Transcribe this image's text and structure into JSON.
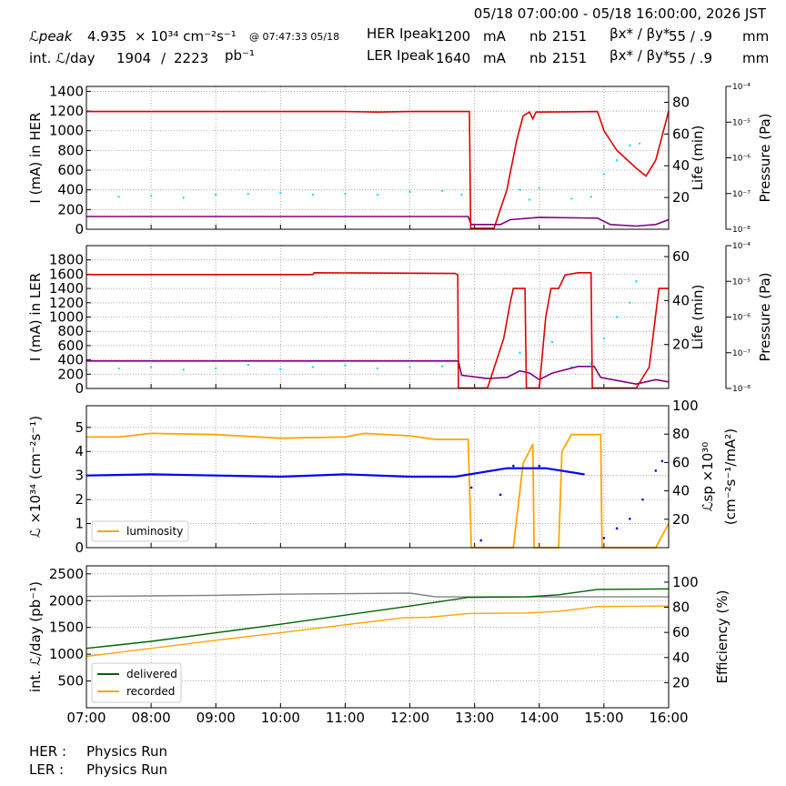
{
  "header": {
    "time_range": "05/18 07:00:00 - 05/18 16:00:00, 2026 JST",
    "lpeak_label": "ℒpeak",
    "lpeak_value": "4.935",
    "lpeak_unit": "× 10³⁴ cm⁻²s⁻¹",
    "lpeak_time": "@ 07:47:33 05/18",
    "intl_label": "int. ℒ/day",
    "intl_recorded": "1904",
    "intl_sep": "/",
    "intl_delivered": "2223",
    "intl_unit": "pb⁻¹",
    "her_label": "HER Ipeak",
    "her_value": "1200",
    "her_unit": "mA",
    "ler_label": "LER Ipeak",
    "ler_value": "1640",
    "ler_unit": "mA",
    "nb_label": "nb",
    "her_nb": "2151",
    "ler_nb": "2151",
    "beta_label": "βx* / βy*",
    "her_beta": "55   / .9",
    "ler_beta": "55   / .9",
    "beta_unit": "mm"
  },
  "footer": {
    "her_label": "HER :",
    "her_status": "Physics Run",
    "ler_label": "LER :",
    "ler_status": "Physics Run"
  },
  "colors": {
    "current": "#e00000",
    "life": "#800080",
    "pressure": "#00e5ff",
    "luminosity": "#ffa500",
    "specific": "#0000ff",
    "delivered": "#006400",
    "recorded": "#ffa500",
    "efficiency": "#808080",
    "grid": "#9a9a9a"
  },
  "chart_data": [
    {
      "type": "line",
      "id": "her",
      "ylabel": "I (mA) in HER",
      "y2label": "Life (min)",
      "y3label": "Pressure (Pa)",
      "x_ticks": [
        "07:00",
        "08:00",
        "09:00",
        "10:00",
        "11:00",
        "12:00",
        "13:00",
        "14:00",
        "15:00",
        "16:00"
      ],
      "xlim": [
        7,
        16
      ],
      "ylim": [
        0,
        1450
      ],
      "yticks": [
        0,
        200,
        400,
        600,
        800,
        1000,
        1200,
        1400
      ],
      "y2lim": [
        0,
        90
      ],
      "y2ticks": [
        20,
        40,
        60,
        80
      ],
      "y3ticks": [
        "10⁻⁸",
        "10⁻⁷",
        "10⁻⁶",
        "10⁻⁵",
        "10⁻⁴"
      ],
      "current": [
        [
          7,
          1195
        ],
        [
          8,
          1195
        ],
        [
          9,
          1195
        ],
        [
          10,
          1195
        ],
        [
          11,
          1195
        ],
        [
          11.5,
          1190
        ],
        [
          12,
          1195
        ],
        [
          12.9,
          1195
        ],
        [
          12.92,
          1195
        ],
        [
          12.94,
          10
        ],
        [
          13.3,
          10
        ],
        [
          13.5,
          400
        ],
        [
          13.65,
          900
        ],
        [
          13.75,
          1150
        ],
        [
          13.85,
          1190
        ],
        [
          13.9,
          1120
        ],
        [
          13.95,
          1190
        ],
        [
          14.9,
          1195
        ],
        [
          15.0,
          1000
        ],
        [
          15.2,
          800
        ],
        [
          15.5,
          620
        ],
        [
          15.65,
          540
        ],
        [
          15.8,
          700
        ],
        [
          16,
          1200
        ]
      ],
      "life": [
        [
          7,
          8
        ],
        [
          10,
          8
        ],
        [
          12.9,
          8
        ],
        [
          12.95,
          3
        ],
        [
          13.4,
          3
        ],
        [
          13.55,
          6
        ],
        [
          14,
          7.5
        ],
        [
          14.9,
          7
        ],
        [
          15.1,
          3
        ],
        [
          15.5,
          2
        ],
        [
          15.8,
          3
        ],
        [
          16,
          6
        ]
      ],
      "pressure_scatter": [
        [
          7,
          380
        ],
        [
          7.5,
          330
        ],
        [
          8,
          340
        ],
        [
          8.5,
          320
        ],
        [
          9,
          350
        ],
        [
          9.5,
          360
        ],
        [
          10,
          370
        ],
        [
          10.5,
          350
        ],
        [
          11,
          360
        ],
        [
          11.5,
          350
        ],
        [
          12,
          380
        ],
        [
          12.5,
          390
        ],
        [
          12.8,
          350
        ],
        [
          13.7,
          400
        ],
        [
          13.85,
          300
        ],
        [
          14,
          420
        ],
        [
          14.5,
          310
        ],
        [
          14.8,
          330
        ],
        [
          15,
          560
        ],
        [
          15.2,
          700
        ],
        [
          15.4,
          850
        ],
        [
          15.55,
          870
        ]
      ]
    },
    {
      "type": "line",
      "id": "ler",
      "ylabel": "I (mA) in LER",
      "y2label": "Life (min)",
      "y3label": "Pressure (Pa)",
      "xlim": [
        7,
        16
      ],
      "ylim": [
        0,
        2000
      ],
      "yticks": [
        0,
        200,
        400,
        600,
        800,
        1000,
        1200,
        1400,
        1600,
        1800
      ],
      "y2lim": [
        0,
        65
      ],
      "y2ticks": [
        20,
        40,
        60
      ],
      "y3ticks": [
        "10⁻⁸",
        "10⁻⁷",
        "10⁻⁶",
        "10⁻⁵",
        "10⁻⁴"
      ],
      "current": [
        [
          7,
          1595
        ],
        [
          10.5,
          1595
        ],
        [
          10.52,
          1620
        ],
        [
          12.7,
          1610
        ],
        [
          12.74,
          1590
        ],
        [
          12.75,
          5
        ],
        [
          13.2,
          5
        ],
        [
          13.45,
          700
        ],
        [
          13.55,
          1200
        ],
        [
          13.6,
          1400
        ],
        [
          13.78,
          1400
        ],
        [
          13.8,
          5
        ],
        [
          14.0,
          5
        ],
        [
          14.1,
          1000
        ],
        [
          14.18,
          1400
        ],
        [
          14.3,
          1400
        ],
        [
          14.4,
          1590
        ],
        [
          14.6,
          1620
        ],
        [
          14.8,
          1620
        ],
        [
          14.82,
          5
        ],
        [
          15.5,
          5
        ],
        [
          15.7,
          300
        ],
        [
          15.85,
          1400
        ],
        [
          16,
          1400
        ]
      ],
      "life": [
        [
          7,
          12.5
        ],
        [
          12.75,
          12.5
        ],
        [
          12.8,
          6
        ],
        [
          13.2,
          4.5
        ],
        [
          13.5,
          5
        ],
        [
          13.7,
          8
        ],
        [
          13.85,
          7
        ],
        [
          14.0,
          4
        ],
        [
          14.2,
          7
        ],
        [
          14.6,
          10
        ],
        [
          14.85,
          10
        ],
        [
          14.95,
          5
        ],
        [
          15.5,
          2
        ],
        [
          15.8,
          4
        ],
        [
          16,
          3
        ]
      ],
      "pressure_scatter": [
        [
          7,
          250
        ],
        [
          7.5,
          280
        ],
        [
          8,
          300
        ],
        [
          8.5,
          260
        ],
        [
          9,
          280
        ],
        [
          9.5,
          330
        ],
        [
          10,
          270
        ],
        [
          10.5,
          300
        ],
        [
          11,
          320
        ],
        [
          11.5,
          280
        ],
        [
          12,
          300
        ],
        [
          12.5,
          310
        ],
        [
          13.7,
          500
        ],
        [
          14.2,
          650
        ],
        [
          14.5,
          300
        ],
        [
          14.8,
          350
        ],
        [
          15,
          700
        ],
        [
          15.2,
          1000
        ],
        [
          15.4,
          1200
        ],
        [
          15.5,
          1500
        ]
      ]
    },
    {
      "type": "line",
      "id": "lumi",
      "ylabel": "ℒ ×10³⁴ (cm⁻²s⁻¹)",
      "y2label": "ℒsp ×10³⁰ (cm⁻²s⁻¹/mA²)",
      "xlim": [
        7,
        16
      ],
      "ylim": [
        0,
        5.9
      ],
      "yticks": [
        0,
        1,
        2,
        3,
        4,
        5
      ],
      "y2lim": [
        0,
        100
      ],
      "y2ticks": [
        20,
        40,
        60,
        80,
        100
      ],
      "legend": [
        "luminosity"
      ],
      "luminosity": [
        [
          7,
          4.6
        ],
        [
          7.5,
          4.6
        ],
        [
          8,
          4.75
        ],
        [
          9,
          4.7
        ],
        [
          10,
          4.55
        ],
        [
          11,
          4.6
        ],
        [
          11.3,
          4.75
        ],
        [
          12,
          4.65
        ],
        [
          12.4,
          4.5
        ],
        [
          12.9,
          4.5
        ],
        [
          12.95,
          0
        ],
        [
          13.6,
          0
        ],
        [
          13.75,
          3.5
        ],
        [
          13.9,
          4.3
        ],
        [
          13.92,
          0
        ],
        [
          14.3,
          0
        ],
        [
          14.35,
          4
        ],
        [
          14.5,
          4.7
        ],
        [
          14.95,
          4.7
        ],
        [
          14.97,
          0
        ],
        [
          15.8,
          0
        ],
        [
          16,
          1.0
        ]
      ],
      "specific": [
        [
          7,
          3.0
        ],
        [
          8,
          3.05
        ],
        [
          9,
          3.0
        ],
        [
          10,
          2.95
        ],
        [
          11,
          3.05
        ],
        [
          12,
          2.95
        ],
        [
          12.7,
          2.95
        ],
        [
          13.5,
          3.3
        ],
        [
          13.8,
          3.3
        ],
        [
          14.1,
          3.3
        ],
        [
          14.7,
          3.05
        ]
      ],
      "specific_scatter": [
        [
          12.95,
          2.5
        ],
        [
          13.1,
          0.3
        ],
        [
          13.4,
          2.2
        ],
        [
          13.6,
          3.4
        ],
        [
          14.0,
          3.4
        ],
        [
          15.0,
          0.4
        ],
        [
          15.2,
          0.8
        ],
        [
          15.4,
          1.2
        ],
        [
          15.6,
          2.0
        ],
        [
          15.8,
          3.2
        ],
        [
          15.9,
          3.6
        ]
      ]
    },
    {
      "type": "line",
      "id": "intl",
      "ylabel": "int. ℒ/day (pb⁻¹)",
      "y2label": "Efficiency (%)",
      "xlim": [
        7,
        16
      ],
      "ylim": [
        0,
        2650
      ],
      "yticks": [
        500,
        1000,
        1500,
        2000,
        2500
      ],
      "y2lim": [
        0,
        113
      ],
      "y2ticks": [
        20,
        40,
        60,
        80,
        100
      ],
      "legend": [
        "delivered",
        "recorded"
      ],
      "delivered": [
        [
          7,
          1110
        ],
        [
          8,
          1240
        ],
        [
          9,
          1400
        ],
        [
          10,
          1560
        ],
        [
          11,
          1730
        ],
        [
          12,
          1900
        ],
        [
          12.9,
          2060
        ],
        [
          13.8,
          2070
        ],
        [
          14.3,
          2110
        ],
        [
          14.9,
          2210
        ],
        [
          16,
          2220
        ]
      ],
      "recorded": [
        [
          7,
          960
        ],
        [
          8,
          1110
        ],
        [
          9,
          1260
        ],
        [
          10,
          1400
        ],
        [
          11,
          1550
        ],
        [
          11.9,
          1680
        ],
        [
          12.3,
          1690
        ],
        [
          12.9,
          1760
        ],
        [
          13.8,
          1770
        ],
        [
          14.3,
          1800
        ],
        [
          14.9,
          1890
        ],
        [
          16,
          1900
        ]
      ],
      "efficiency": [
        [
          7,
          2080
        ],
        [
          8,
          2090
        ],
        [
          9,
          2100
        ],
        [
          10,
          2120
        ],
        [
          11,
          2130
        ],
        [
          12,
          2140
        ],
        [
          12.4,
          2070
        ],
        [
          16,
          2070
        ]
      ]
    }
  ]
}
